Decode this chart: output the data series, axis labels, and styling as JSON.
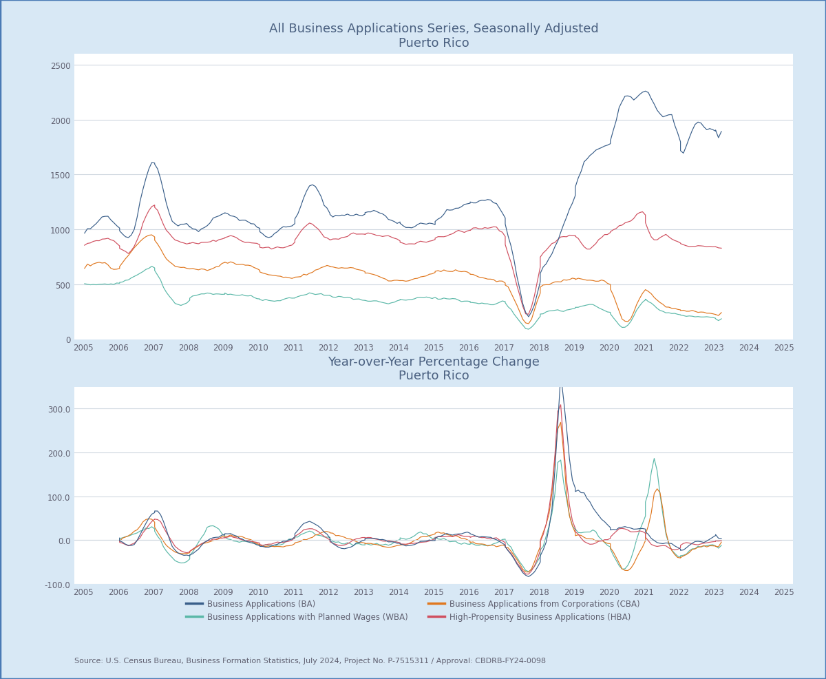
{
  "title1": "All Business Applications Series, Seasonally Adjusted",
  "subtitle1": "Puerto Rico",
  "title2": "Year-over-Year Percentage Change",
  "subtitle2": "Puerto Rico",
  "source": "Source: U.S. Census Bureau, Business Formation Statistics, July 2024, Project No. P-7515311 / Approval: CBDRB-FY24-0098",
  "colors": {
    "BA": "#3A5F8A",
    "WBA": "#5BB8A8",
    "CBA": "#E07820",
    "HBA": "#D05060"
  },
  "legend": [
    {
      "label": "Business Applications (BA)",
      "color": "#3A5F8A"
    },
    {
      "label": "Business Applications with Planned Wages (WBA)",
      "color": "#5BB8A8"
    },
    {
      "label": "Business Applications from Corporations (CBA)",
      "color": "#E07820"
    },
    {
      "label": "High-Propensity Business Applications (HBA)",
      "color": "#D05060"
    }
  ],
  "background": "#FFFFFF",
  "outer_background": "#D8E8F5",
  "border_color": "#4A7AB5",
  "grid_color": "#D0D8E0",
  "title_color": "#4A6080",
  "axis_color": "#606070",
  "ylim1": [
    0,
    2600
  ],
  "yticks1": [
    0,
    500,
    1000,
    1500,
    2000,
    2500
  ],
  "ylim2": [
    -100,
    350
  ],
  "yticks2": [
    -100.0,
    0.0,
    100.0,
    200.0,
    300.0
  ],
  "xmin": 2004.75,
  "xmax": 2025.25
}
